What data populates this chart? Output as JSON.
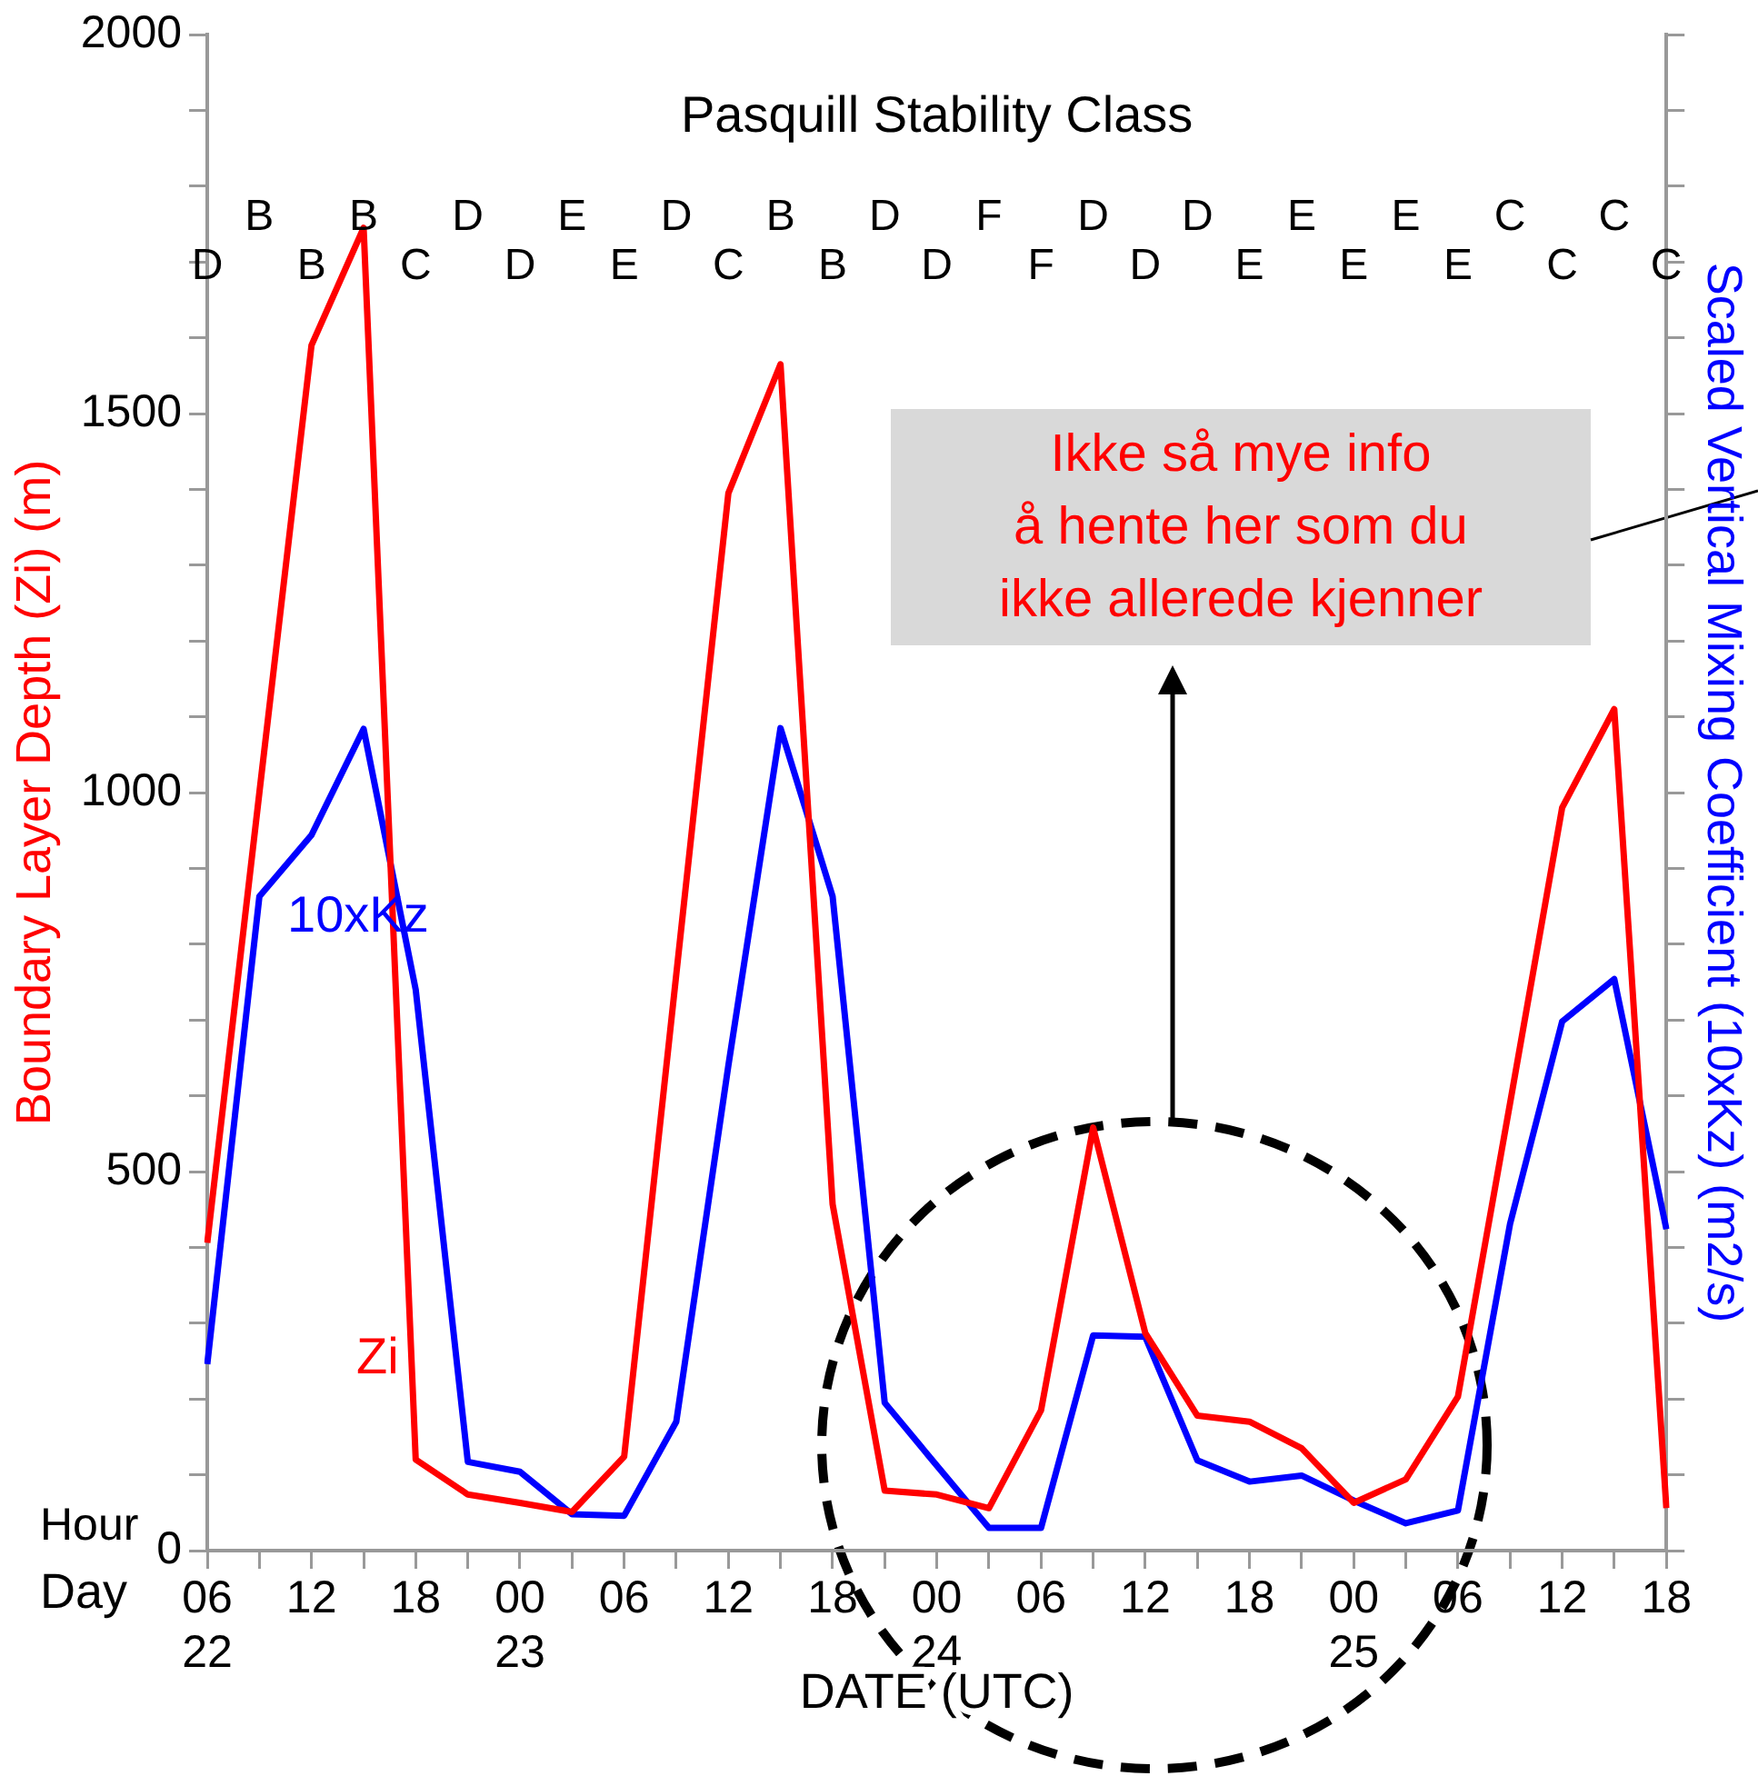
{
  "chart_data": {
    "type": "line",
    "xlabel": "DATE (UTC)",
    "ylabel": "Boundary Layer Depth (Zi) (m)",
    "y2label": "Scaled Vertical Mixing Coefficient (10xKz) (m2/s)",
    "categories": [
      "06\n22",
      null,
      "12",
      null,
      "18",
      null,
      "00\n23",
      null,
      "06",
      null,
      "12",
      null,
      "18",
      null,
      "00\n24",
      null,
      "06",
      null,
      "12",
      null,
      "18",
      null,
      "00\n25",
      null,
      "06",
      null,
      "12",
      null,
      "18"
    ],
    "series": [
      {
        "name": "Zi",
        "color": "#ff0000",
        "values": [
          406,
          1000,
          1590,
          1745,
          120,
          74,
          63,
          51,
          124,
          760,
          1395,
          1565,
          457,
          79,
          74,
          56,
          185,
          558,
          287,
          178,
          170,
          135,
          63,
          94,
          203,
          590,
          980,
          1110,
          56
        ]
      },
      {
        "name": "10xKz",
        "color": "#0000ff",
        "values": [
          246,
          863,
          944,
          1084,
          740,
          117,
          104,
          48,
          46,
          170,
          640,
          1085,
          863,
          195,
          112,
          30,
          30,
          284,
          282,
          119,
          91,
          99,
          66,
          36,
          53,
          431,
          698,
          754,
          424
        ]
      }
    ],
    "ylim": [
      0,
      2000
    ],
    "yticks": [
      0,
      {
        "value": 100,
        "label": null
      },
      {
        "value": 200,
        "label": null
      },
      {
        "value": 300,
        "label": null
      },
      {
        "value": 400,
        "label": null
      },
      500,
      {
        "value": 600,
        "label": null
      },
      {
        "value": 700,
        "label": null
      },
      {
        "value": 800,
        "label": null
      },
      {
        "value": 900,
        "label": null
      },
      1000,
      {
        "value": 1100,
        "label": null
      },
      {
        "value": 1200,
        "label": null
      },
      {
        "value": 1300,
        "label": null
      },
      {
        "value": 1400,
        "label": null
      },
      1500,
      {
        "value": 1600,
        "label": null
      },
      {
        "value": 1700,
        "label": null
      },
      {
        "value": 1800,
        "label": null
      },
      {
        "value": 1900,
        "label": null
      },
      2000
    ],
    "grid": false,
    "legend": false,
    "marker": "none",
    "line_style": "solid",
    "annotations": [
      "Pasquill Stability Class",
      "Ikke så mye info\nå hente her som du\nikke allerede kjenner",
      "Hour",
      "Day",
      "D",
      "B",
      "B",
      "B",
      "C",
      "D",
      "D",
      "E",
      "E",
      "D",
      "C",
      "B",
      "B",
      "D",
      "D",
      "F",
      "F",
      "D",
      "D",
      "D",
      "E",
      "E",
      "E",
      "E",
      "E",
      "C",
      "C",
      "C",
      "C"
    ]
  }
}
